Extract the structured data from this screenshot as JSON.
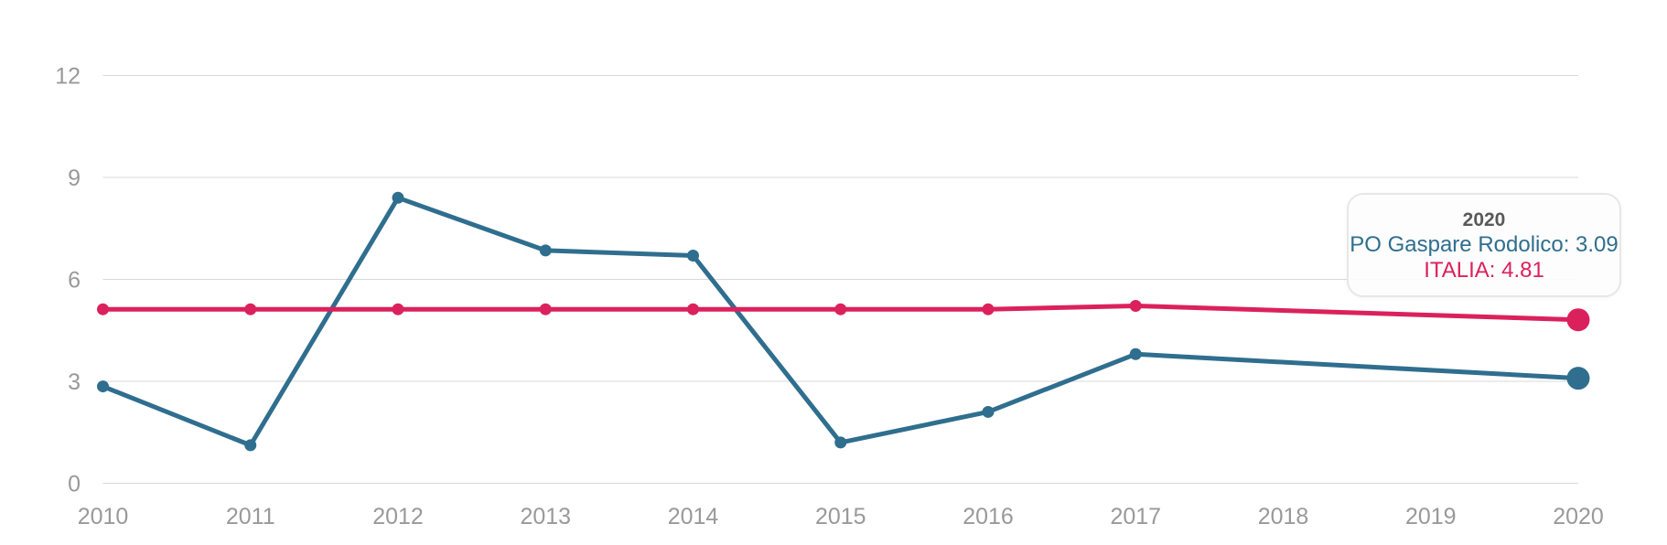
{
  "chart_data": {
    "type": "line",
    "title": "",
    "xlabel": "",
    "ylabel": "",
    "categories": [
      "2010",
      "2011",
      "2012",
      "2013",
      "2014",
      "2015",
      "2016",
      "2017",
      "2018",
      "2019",
      "2020"
    ],
    "series": [
      {
        "name": "PO Gaspare Rodolico",
        "color": "#2F6E8E",
        "values": [
          2.85,
          1.12,
          8.4,
          6.85,
          6.7,
          1.2,
          2.1,
          3.8,
          null,
          null,
          3.09
        ],
        "highlighted_point": {
          "category": "2020",
          "value": 3.09
        }
      },
      {
        "name": "ITALIA",
        "color": "#DB215C",
        "values": [
          5.12,
          5.12,
          5.12,
          5.12,
          5.12,
          5.12,
          5.12,
          5.22,
          null,
          null,
          4.81
        ],
        "highlighted_point": {
          "category": "2020",
          "value": 4.81
        }
      }
    ],
    "ylim": [
      0,
      12
    ],
    "yticks": [
      0,
      3,
      6,
      9,
      12
    ],
    "grid": "horizontal",
    "legend": "none",
    "grid_color": "#D8D8D8",
    "axis_label_color": "#999999"
  },
  "tooltip": {
    "title": "2020",
    "rows": [
      "PO Gaspare Rodolico: 3.09",
      "ITALIA: 4.81"
    ]
  }
}
